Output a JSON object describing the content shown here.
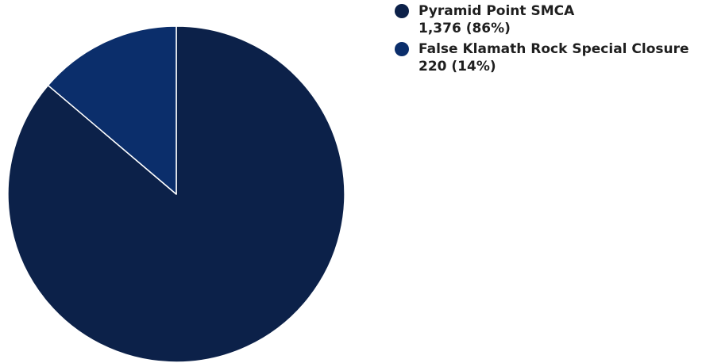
{
  "chart_data": {
    "type": "pie",
    "title": "",
    "slices": [
      {
        "label": "Pyramid Point SMCA",
        "value": 1376,
        "display": "1,376 (86%)",
        "color": "#0c2149"
      },
      {
        "label": "False Klamath Rock Special Closure",
        "value": 220,
        "display": "220 (14%)",
        "color": "#0b2e6b"
      }
    ],
    "slice_border_color": "#ffffff",
    "legend_position": "top-right"
  }
}
